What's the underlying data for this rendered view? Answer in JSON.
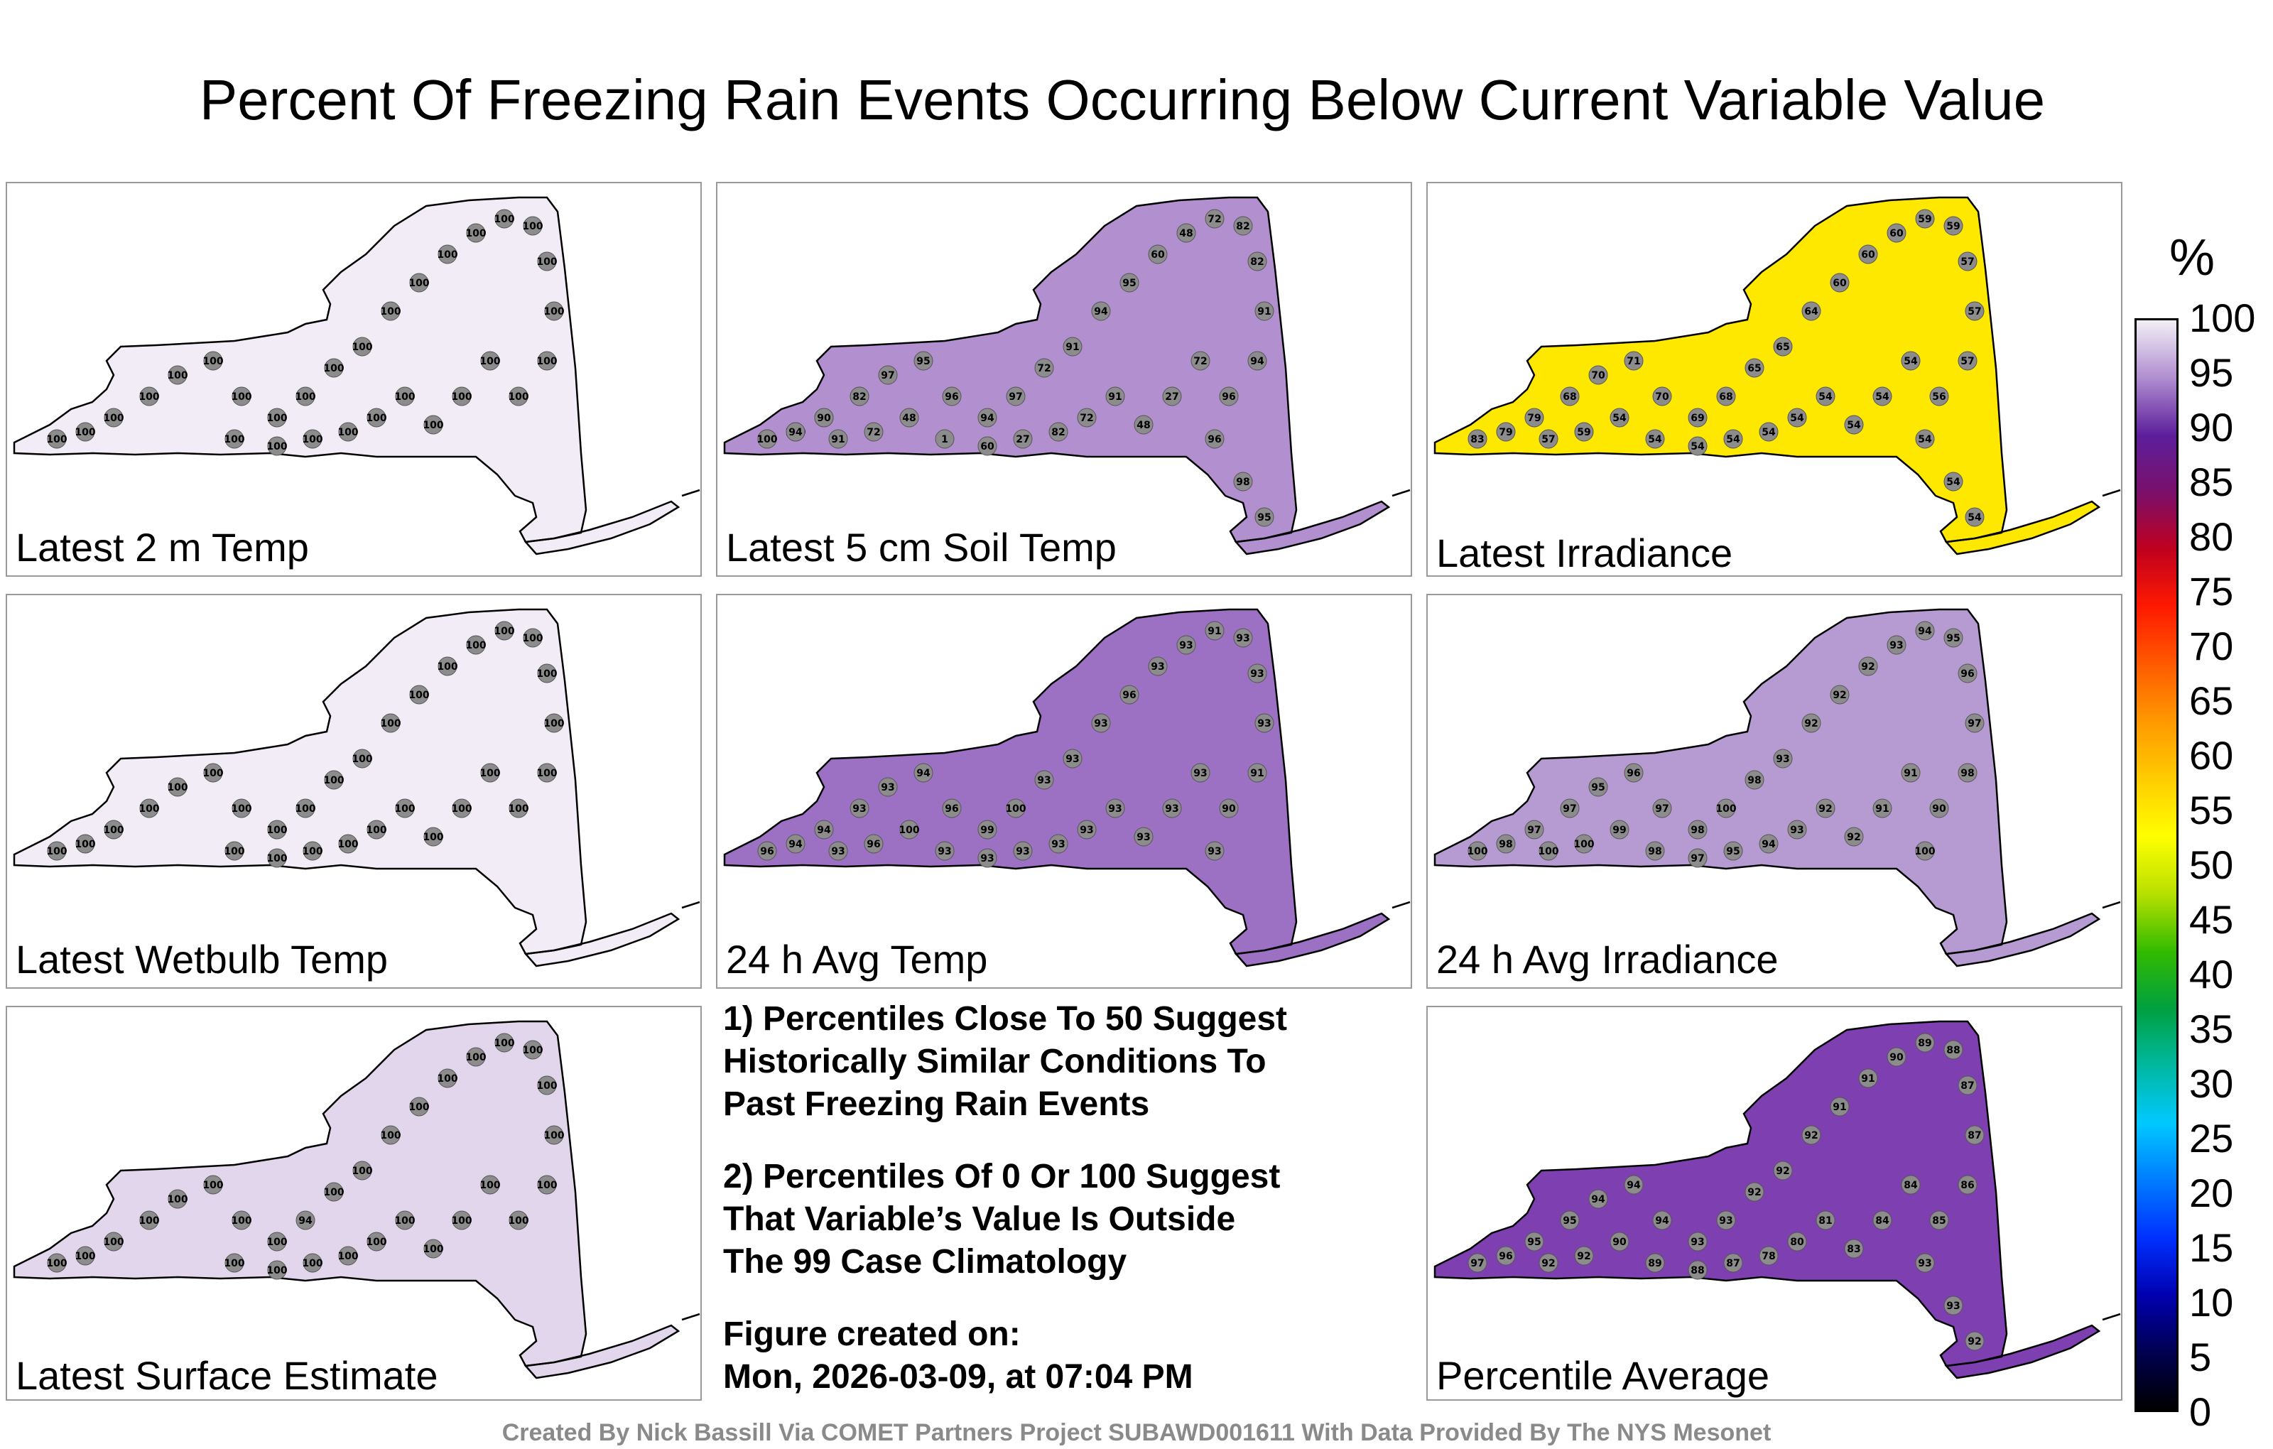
{
  "title": "Percent Of Freezing Rain Events Occurring Below Current Variable Value",
  "footer": "Created By Nick Bassill Via COMET Partners Project SUBAWD001611 With Data Provided By The NYS Mesonet",
  "notes": {
    "note1": "1) Percentiles Close To 50 Suggest\nHistorically Similar Conditions To\nPast Freezing Rain Events",
    "note2": "2) Percentiles Of 0 Or 100 Suggest\nThat Variable’s Value Is Outside\nThe 99 Case Climatology",
    "created": "Figure created on:\nMon, 2026-03-09, at 07:04 PM"
  },
  "colorbar": {
    "unit": "%",
    "ticks": [
      "100",
      "95",
      "90",
      "85",
      "80",
      "75",
      "70",
      "65",
      "60",
      "55",
      "50",
      "45",
      "40",
      "35",
      "30",
      "25",
      "20",
      "15",
      "10",
      "5",
      "0"
    ]
  },
  "panels": [
    {
      "label": "Latest 2 m Temp",
      "fill": "#f1ecf5",
      "values": [
        "100",
        "100",
        "100",
        "100",
        "100",
        "100",
        "100",
        "100",
        "100",
        "100",
        "100",
        "100",
        "100",
        "100",
        "100",
        "100",
        "100",
        "100",
        "100",
        "100",
        "100",
        "100",
        "100",
        "100",
        "100",
        "100",
        "100",
        "100",
        "100",
        "100"
      ]
    },
    {
      "label": "Latest 5 cm Soil Temp",
      "fill": "#b28fcf",
      "values": [
        "95",
        "100",
        "96",
        "98",
        "97",
        "95",
        "96",
        "94",
        "97",
        "72",
        "91",
        "94",
        "95",
        "60",
        "48",
        "72",
        "82",
        "82",
        "91",
        "94",
        "96",
        "72",
        "27",
        "48",
        "91",
        "72",
        "82",
        "27",
        "60",
        "1",
        "48",
        "72",
        "91",
        "96",
        "98",
        "95",
        "100",
        "94",
        "90",
        "82"
      ]
    },
    {
      "label": "Latest Irradiance",
      "fill": "#ffe800",
      "values": [
        "83",
        "79",
        "79",
        "68",
        "70",
        "71",
        "70",
        "69",
        "68",
        "65",
        "65",
        "64",
        "60",
        "60",
        "60",
        "59",
        "59",
        "57",
        "57",
        "57",
        "56",
        "54",
        "54",
        "54",
        "54",
        "54",
        "54",
        "54",
        "54",
        "54",
        "54",
        "59",
        "57",
        "54",
        "54",
        "54"
      ]
    },
    {
      "label": "Latest Wetbulb Temp",
      "fill": "#f1ecf5",
      "values": [
        "100",
        "100",
        "100",
        "100",
        "100",
        "100",
        "100",
        "100",
        "100",
        "100",
        "100",
        "100",
        "100",
        "100",
        "100",
        "100",
        "100",
        "100",
        "100",
        "100",
        "100",
        "100",
        "100",
        "100",
        "100",
        "100",
        "100",
        "100",
        "100",
        "100"
      ]
    },
    {
      "label": "24 h Avg Temp",
      "fill": "#9c70c2",
      "values": [
        "96",
        "94",
        "94",
        "93",
        "93",
        "94",
        "96",
        "99",
        "100",
        "93",
        "93",
        "93",
        "96",
        "93",
        "93",
        "91",
        "93",
        "93",
        "93",
        "91",
        "90",
        "93",
        "93",
        "93",
        "93",
        "93",
        "93",
        "93",
        "93",
        "93",
        "100",
        "96",
        "93",
        "93"
      ]
    },
    {
      "label": "24 h Avg Irradiance",
      "fill": "#b69bd3",
      "values": [
        "100",
        "98",
        "97",
        "97",
        "95",
        "96",
        "97",
        "98",
        "100",
        "98",
        "93",
        "92",
        "92",
        "92",
        "93",
        "94",
        "95",
        "96",
        "97",
        "98",
        "90",
        "91",
        "91",
        "92",
        "92",
        "93",
        "94",
        "95",
        "97",
        "98",
        "99",
        "100",
        "100",
        "100"
      ]
    },
    {
      "label": "Latest Surface Estimate",
      "fill": "#e2d6ec",
      "values": [
        "100",
        "100",
        "100",
        "100",
        "100",
        "100",
        "100",
        "100",
        "94",
        "100",
        "100",
        "100",
        "100",
        "100",
        "100",
        "100",
        "100",
        "100",
        "100",
        "100",
        "100",
        "100",
        "100",
        "100",
        "100",
        "100",
        "100",
        "100",
        "100",
        "100"
      ]
    },
    {
      "label": "Percentile Average",
      "fill": "#7e3fb0",
      "values": [
        "97",
        "96",
        "95",
        "95",
        "94",
        "94",
        "94",
        "93",
        "93",
        "92",
        "92",
        "92",
        "91",
        "91",
        "90",
        "89",
        "88",
        "87",
        "87",
        "86",
        "85",
        "84",
        "84",
        "83",
        "81",
        "80",
        "78",
        "87",
        "88",
        "89",
        "90",
        "92",
        "92",
        "93",
        "93",
        "92"
      ]
    }
  ]
}
